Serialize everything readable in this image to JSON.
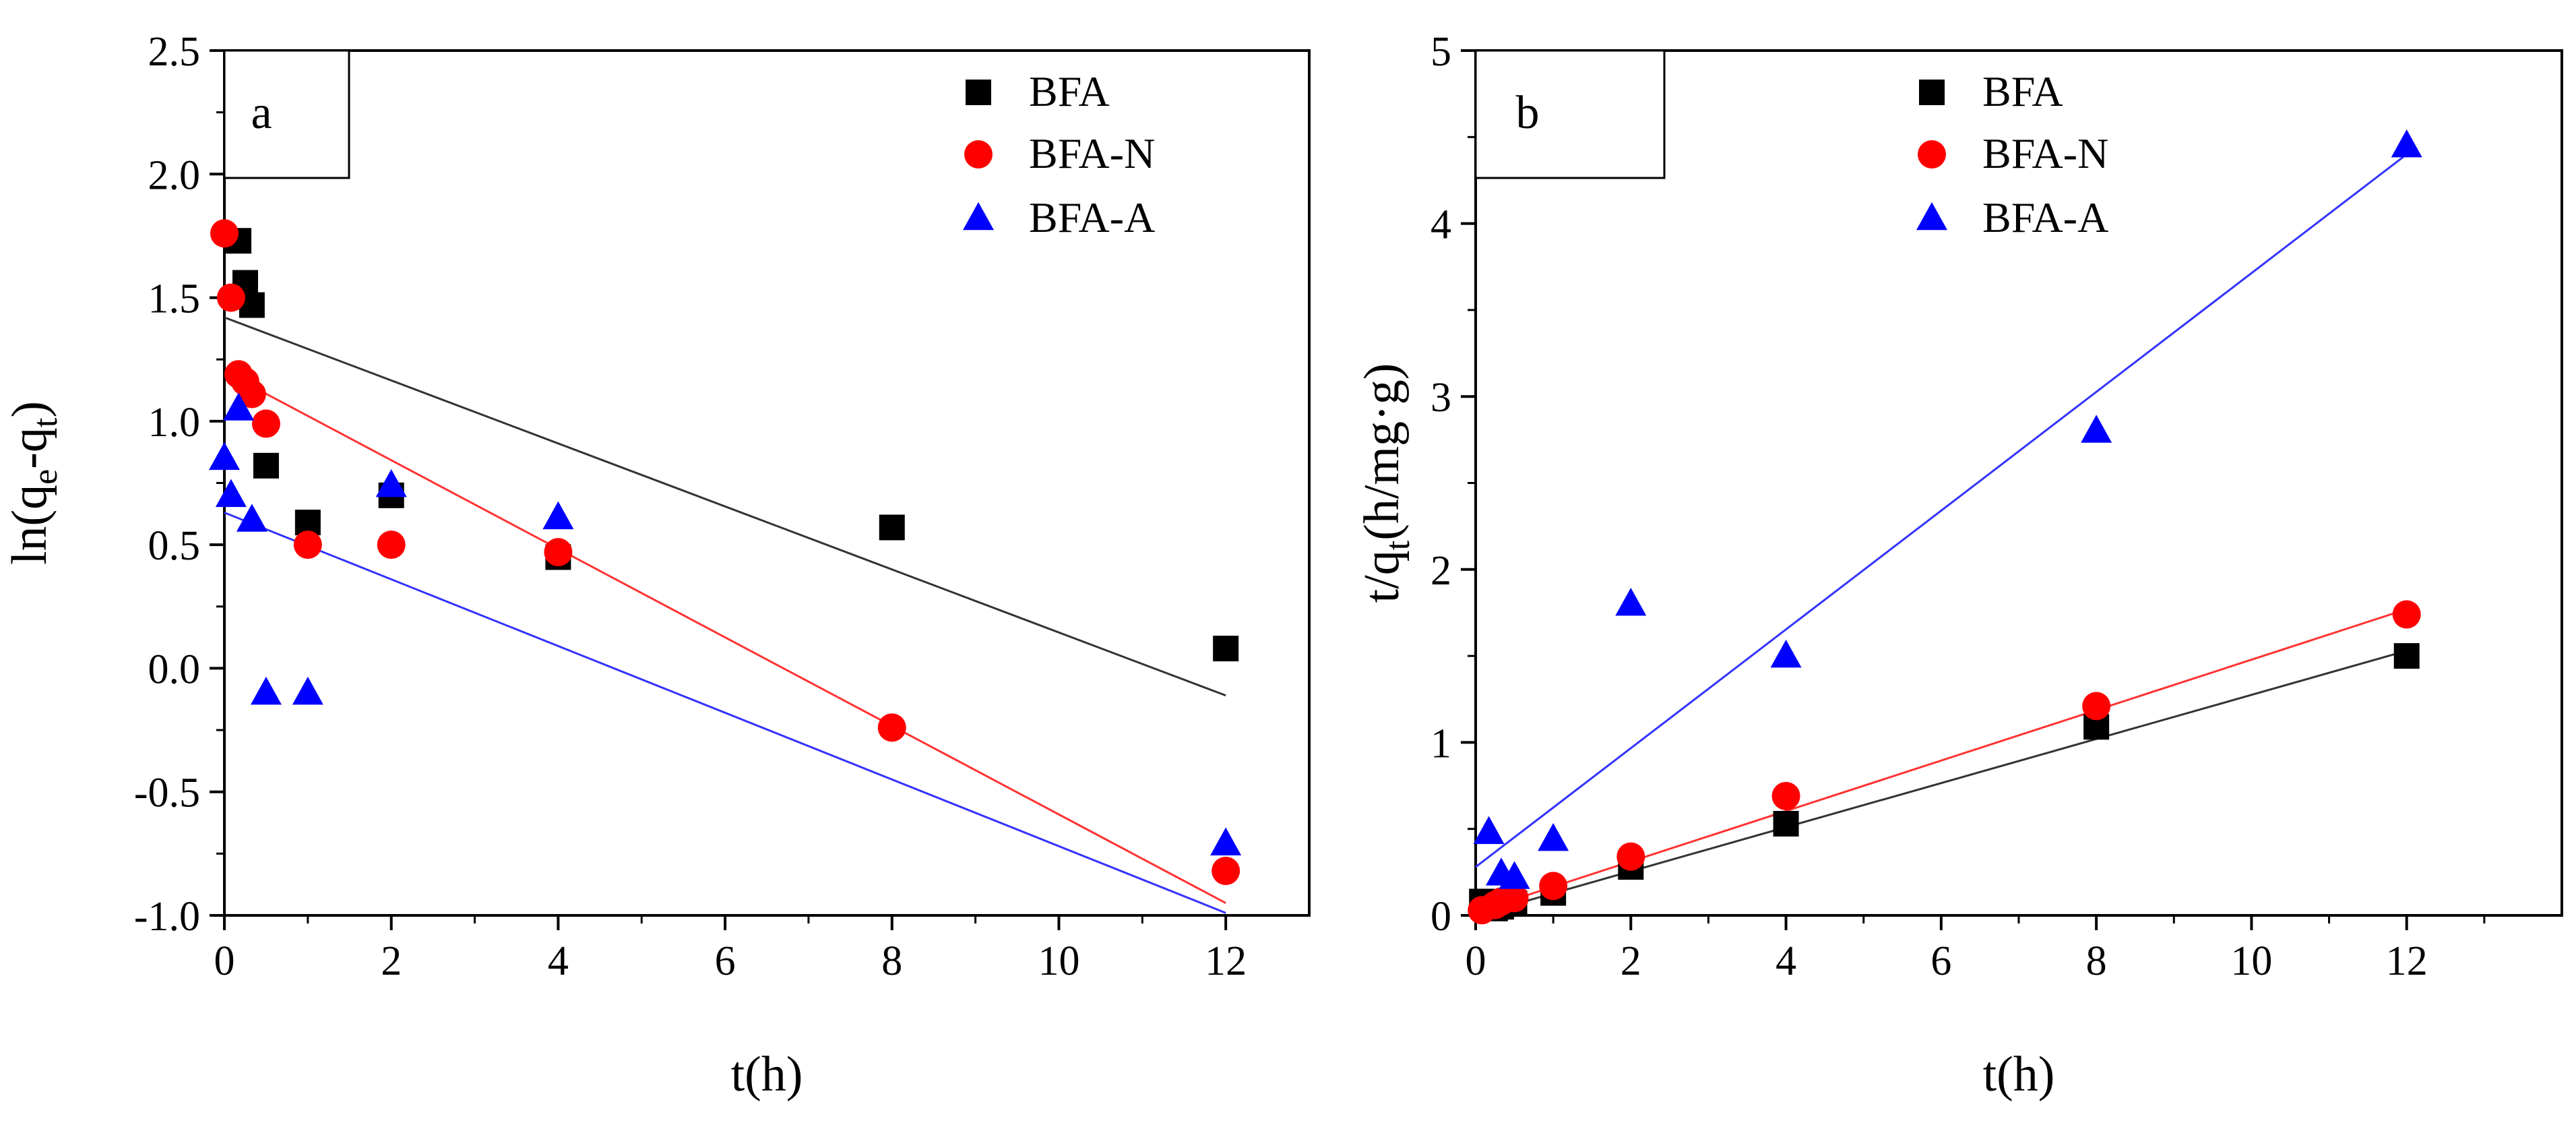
{
  "chart_data": [
    {
      "type": "scatter",
      "panel_label": "a",
      "xlabel": "t(h)",
      "ylabel": {
        "base": "ln(q",
        "sub1": "e",
        "mid": "-q",
        "sub2": "t",
        "end": ")"
      },
      "xlim": [
        0,
        13
      ],
      "ylim": [
        -1.0,
        2.5
      ],
      "xticks": [
        0,
        2,
        4,
        6,
        8,
        10,
        12
      ],
      "yticks": [
        -1.0,
        -0.5,
        0.0,
        0.5,
        1.0,
        1.5,
        2.0,
        2.5
      ],
      "xtick_labels": [
        "0",
        "2",
        "4",
        "6",
        "8",
        "10",
        "12"
      ],
      "ytick_labels": [
        "-1.0",
        "-0.5",
        "0.0",
        "0.5",
        "1.0",
        "1.5",
        "2.0",
        "2.5"
      ],
      "legend_position": "top-right",
      "series": [
        {
          "name": "BFA",
          "marker": "square",
          "color": "#000000",
          "line_color": "#333333",
          "x": [
            0.17,
            0.25,
            0.33,
            0.5,
            1,
            2,
            4,
            8,
            12
          ],
          "y": [
            1.73,
            1.56,
            1.47,
            0.82,
            0.59,
            0.7,
            0.45,
            0.57,
            0.08
          ],
          "fit": {
            "x": [
              0,
              12
            ],
            "y": [
              1.42,
              -0.11
            ]
          }
        },
        {
          "name": "BFA-N",
          "marker": "circle",
          "color": "#ff0000",
          "line_color": "#ff3333",
          "x": [
            0,
            0.08,
            0.17,
            0.25,
            0.33,
            0.5,
            1,
            2,
            4,
            8,
            12
          ],
          "y": [
            1.76,
            1.5,
            1.19,
            1.16,
            1.11,
            0.99,
            0.5,
            0.5,
            0.47,
            -0.24,
            -0.82
          ],
          "fit": {
            "x": [
              0.17,
              12
            ],
            "y": [
              1.17,
              -0.95
            ]
          }
        },
        {
          "name": "BFA-A",
          "marker": "triangle",
          "color": "#0000ff",
          "line_color": "#3333ff",
          "x": [
            0,
            0.08,
            0.17,
            0.33,
            0.5,
            1,
            2,
            4,
            12
          ],
          "y": [
            0.85,
            0.7,
            1.05,
            0.6,
            -0.1,
            -0.1,
            0.74,
            0.61,
            -0.71
          ],
          "fit": {
            "x": [
              0,
              12
            ],
            "y": [
              0.63,
              -0.99
            ]
          }
        }
      ]
    },
    {
      "type": "scatter",
      "panel_label": "b",
      "xlabel": "t(h)",
      "ylabel": {
        "base": "t/q",
        "sub1": "t",
        "mid": "(h/mg·g)",
        "sub2": "",
        "end": ""
      },
      "xlim": [
        0,
        14
      ],
      "ylim": [
        0,
        5
      ],
      "xticks": [
        0,
        2,
        4,
        6,
        8,
        10,
        12
      ],
      "yticks": [
        0,
        1,
        2,
        3,
        4,
        5
      ],
      "xtick_labels": [
        "0",
        "2",
        "4",
        "6",
        "8",
        "10",
        "12"
      ],
      "ytick_labels": [
        "0",
        "1",
        "2",
        "3",
        "4",
        "5"
      ],
      "legend_position": "top-left",
      "series": [
        {
          "name": "BFA",
          "marker": "square",
          "color": "#000000",
          "line_color": "#333333",
          "x": [
            0.08,
            0.25,
            0.33,
            0.5,
            1,
            2,
            4,
            8,
            12
          ],
          "y": [
            0.08,
            0.04,
            0.05,
            0.07,
            0.13,
            0.28,
            0.53,
            1.09,
            1.5
          ],
          "fit": {
            "x": [
              0,
              12
            ],
            "y": [
              0.0,
              1.53
            ]
          }
        },
        {
          "name": "BFA-N",
          "marker": "circle",
          "color": "#ff0000",
          "line_color": "#ff3333",
          "x": [
            0.08,
            0.25,
            0.33,
            0.5,
            1,
            2,
            4,
            8,
            12
          ],
          "y": [
            0.03,
            0.06,
            0.08,
            0.1,
            0.17,
            0.34,
            0.69,
            1.21,
            1.74
          ],
          "fit": {
            "x": [
              0,
              12
            ],
            "y": [
              0.02,
              1.77
            ]
          }
        },
        {
          "name": "BFA-A",
          "marker": "triangle",
          "color": "#0000ff",
          "line_color": "#3333ff",
          "x": [
            0.17,
            0.33,
            0.5,
            1,
            2,
            4,
            8,
            12
          ],
          "y": [
            0.48,
            0.24,
            0.22,
            0.44,
            1.8,
            1.5,
            2.8,
            4.45
          ],
          "fit": {
            "x": [
              0,
              12
            ],
            "y": [
              0.28,
              4.4
            ]
          }
        }
      ]
    }
  ]
}
